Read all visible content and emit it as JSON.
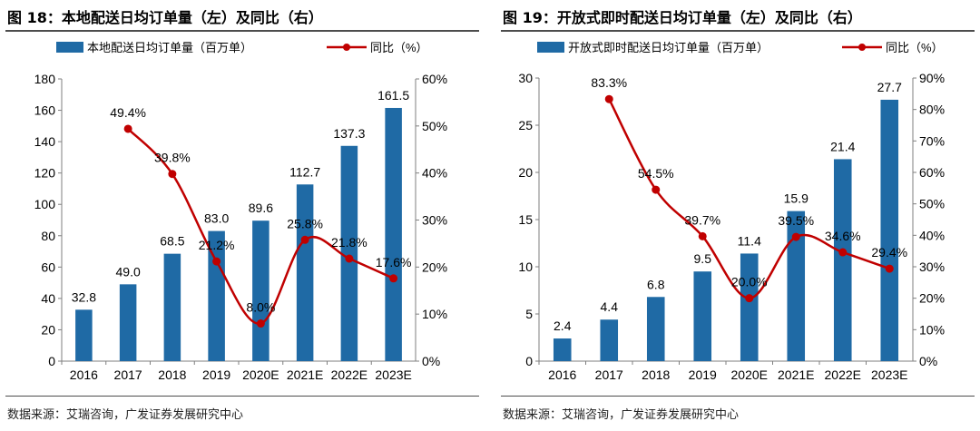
{
  "colors": {
    "bar": "#1f6aa5",
    "line": "#c00000",
    "axis": "#7f7f7f"
  },
  "source": "数据来源：艾瑞咨询，广发证券发展研究中心",
  "chart_data": [
    {
      "type": "bar",
      "title": "图 18：本地配送日均订单量（左）及同比（右）",
      "categories": [
        "2016",
        "2017",
        "2018",
        "2019",
        "2020E",
        "2021E",
        "2022E",
        "2023E"
      ],
      "series": [
        {
          "name": "本地配送日均订单量（百万单）",
          "type": "bar",
          "axis": "left",
          "values": [
            32.8,
            49.0,
            68.5,
            83.0,
            89.6,
            112.7,
            137.3,
            161.5
          ],
          "labels": [
            "32.8",
            "49.0",
            "68.5",
            "83.0",
            "89.6",
            "112.7",
            "137.3",
            "161.5"
          ]
        },
        {
          "name": "同比（%）",
          "type": "line",
          "axis": "right",
          "values": [
            null,
            49.4,
            39.8,
            21.2,
            8.0,
            25.8,
            21.8,
            17.6
          ],
          "labels": [
            "",
            "49.4%",
            "39.8%",
            "21.2%",
            "8.0%",
            "25.8%",
            "21.8%",
            "17.6%"
          ]
        }
      ],
      "y_left": {
        "min": 0,
        "max": 180,
        "step": 20,
        "ticks": [
          "0",
          "20",
          "40",
          "60",
          "80",
          "100",
          "120",
          "140",
          "160",
          "180"
        ]
      },
      "y_right": {
        "min": 0,
        "max": 60,
        "step": 10,
        "ticks": [
          "0%",
          "10%",
          "20%",
          "30%",
          "40%",
          "50%",
          "60%"
        ]
      },
      "grid": false,
      "legend": "top"
    },
    {
      "type": "bar",
      "title": "图 19：开放式即时配送日均订单量（左）及同比（右）",
      "categories": [
        "2016",
        "2017",
        "2018",
        "2019",
        "2020E",
        "2021E",
        "2022E",
        "2023E"
      ],
      "series": [
        {
          "name": "开放式即时配送日均订单量（百万单）",
          "type": "bar",
          "axis": "left",
          "values": [
            2.4,
            4.4,
            6.8,
            9.5,
            11.4,
            15.9,
            21.4,
            27.7
          ],
          "labels": [
            "2.4",
            "4.4",
            "6.8",
            "9.5",
            "11.4",
            "15.9",
            "21.4",
            "27.7"
          ]
        },
        {
          "name": "同比（%）",
          "type": "line",
          "axis": "right",
          "values": [
            null,
            83.3,
            54.5,
            39.7,
            20.0,
            39.5,
            34.6,
            29.4
          ],
          "labels": [
            "",
            "83.3%",
            "54.5%",
            "39.7%",
            "20.0%",
            "39.5%",
            "34.6%",
            "29.4%"
          ]
        }
      ],
      "y_left": {
        "min": 0,
        "max": 30,
        "step": 5,
        "ticks": [
          "0",
          "5",
          "10",
          "15",
          "20",
          "25",
          "30"
        ]
      },
      "y_right": {
        "min": 0,
        "max": 90,
        "step": 10,
        "ticks": [
          "0%",
          "10%",
          "20%",
          "30%",
          "40%",
          "50%",
          "60%",
          "70%",
          "80%",
          "90%"
        ]
      },
      "grid": false,
      "legend": "top"
    }
  ]
}
